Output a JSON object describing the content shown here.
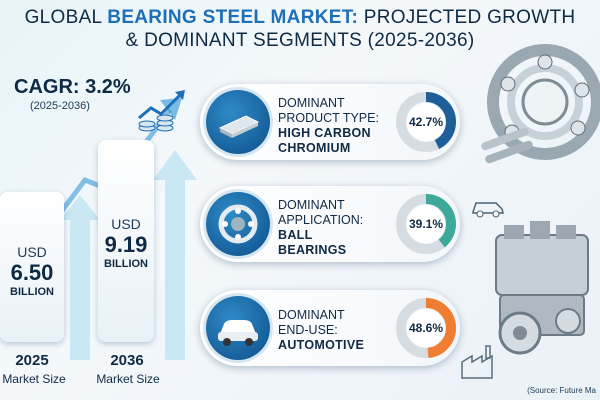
{
  "title": {
    "line1_a": "GLOBAL ",
    "line1_b": "BEARING STEEL MARKET:",
    "line1_c": " PROJECTED GROWTH",
    "line2": "& DOMINANT SEGMENTS (2025-2036)"
  },
  "cagr": {
    "label": "CAGR: 3.2%",
    "period": "(2025-2036)"
  },
  "bars": [
    {
      "currency": "USD",
      "value": "6.50",
      "unit": "BILLION",
      "year": "2025",
      "caption": "Market Size"
    },
    {
      "currency": "USD",
      "value": "9.19",
      "unit": "BILLION",
      "year": "2036",
      "caption": "Market Size"
    }
  ],
  "segments": [
    {
      "line1": "DOMINANT",
      "line2": "PRODUCT TYPE:",
      "bold1": "HIGH CARBON",
      "bold2": "CHROMIUM",
      "percent_label": "42.7%",
      "fraction": 0.427,
      "color": "#1f5f99",
      "icon": "steel-bar-icon"
    },
    {
      "line1": "DOMINANT",
      "line2": "APPLICATION:",
      "bold1": "BALL",
      "bold2": "BEARINGS",
      "percent_label": "39.1%",
      "fraction": 0.391,
      "color": "#3ea89b",
      "icon": "bearing-icon"
    },
    {
      "line1": "DOMINANT",
      "line2": "END-USE:",
      "bold1": "AUTOMOTIVE",
      "bold2": "",
      "percent_label": "48.6%",
      "fraction": 0.486,
      "color": "#ef7d32",
      "icon": "car-icon"
    }
  ],
  "source": "(Source: Future Ma"
}
